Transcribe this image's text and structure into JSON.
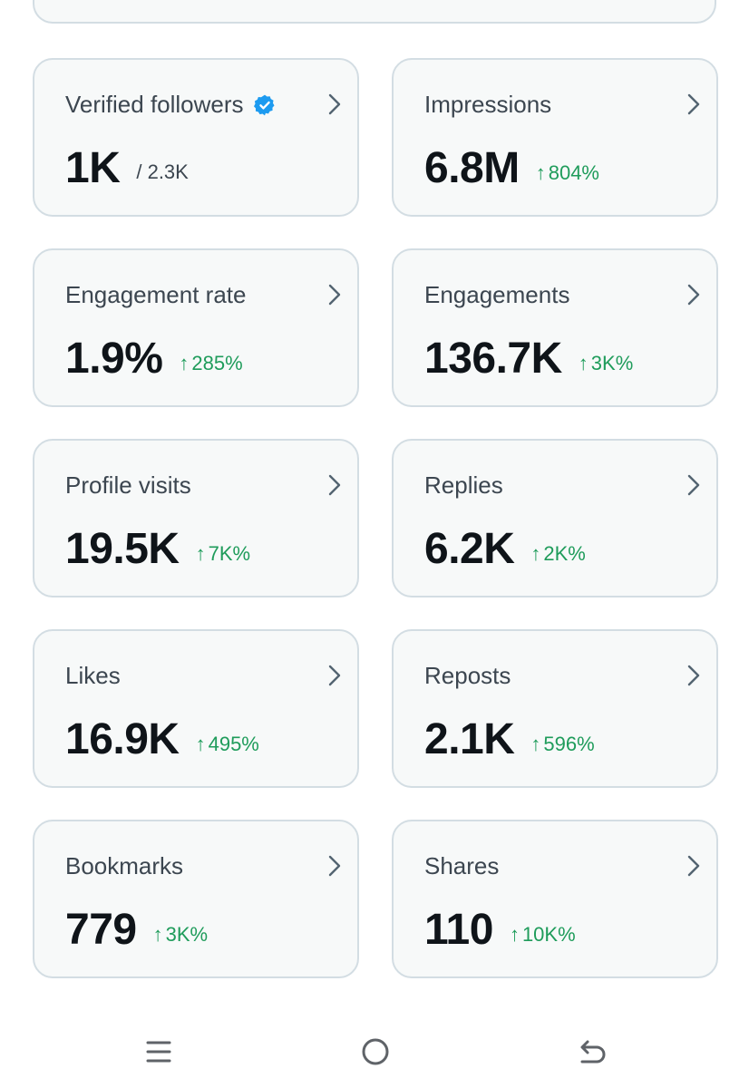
{
  "colors": {
    "card_bg": "#f7f9f9",
    "card_border": "#d3dde3",
    "value_text": "#0f1419",
    "label_text": "#3c4650",
    "positive_change": "#1f9c5b",
    "verified_badge": "#1d9bf0",
    "chevron": "#536471",
    "nav_icons": "#5f6368"
  },
  "metrics": [
    {
      "label": "Verified followers",
      "value": "1K",
      "sub": "/ 2.3K",
      "change": "",
      "icon": "verified-badge-icon"
    },
    {
      "label": "Impressions",
      "value": "6.8M",
      "change": "804%"
    },
    {
      "label": "Engagement rate",
      "value": "1.9%",
      "change": "285%"
    },
    {
      "label": "Engagements",
      "value": "136.7K",
      "change": "3K%"
    },
    {
      "label": "Profile visits",
      "value": "19.5K",
      "change": "7K%"
    },
    {
      "label": "Replies",
      "value": "6.2K",
      "change": "2K%"
    },
    {
      "label": "Likes",
      "value": "16.9K",
      "change": "495%"
    },
    {
      "label": "Reposts",
      "value": "2.1K",
      "change": "596%"
    },
    {
      "label": "Bookmarks",
      "value": "779",
      "change": "3K%"
    },
    {
      "label": "Shares",
      "value": "110",
      "change": "10K%"
    }
  ],
  "change_arrow": "↑",
  "nav": {
    "items": [
      "recent-apps-icon",
      "home-circle-icon",
      "back-icon"
    ]
  }
}
